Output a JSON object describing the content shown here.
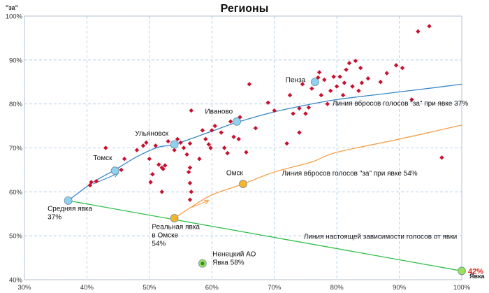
{
  "chart_data": {
    "type": "scatter",
    "title": "Регионы",
    "xlabel": "Явка",
    "ylabel": "\"за\"",
    "xlim": [
      0.3,
      1.0
    ],
    "ylim": [
      0.4,
      1.0
    ],
    "x_ticks": [
      "30%",
      "40%",
      "50%",
      "60%",
      "70%",
      "80%",
      "90%",
      "100%"
    ],
    "y_ticks": [
      "40%",
      "50%",
      "60%",
      "70%",
      "80%",
      "90%",
      "100%"
    ],
    "grid": true,
    "colors": {
      "regions": "#c8102e",
      "line_37": "#3a87c8",
      "line_54": "#f5a04a",
      "line_real": "#2fbf4a",
      "marker_blue": "#8fd1ee",
      "marker_orange": "#f6b52b",
      "marker_green": "#9be05a",
      "accent": "#e0201b",
      "grid": "#a9c4e4"
    },
    "regions": [
      [
        0.405,
        0.615
      ],
      [
        0.407,
        0.622
      ],
      [
        0.415,
        0.624
      ],
      [
        0.43,
        0.7
      ],
      [
        0.455,
        0.65
      ],
      [
        0.46,
        0.675
      ],
      [
        0.48,
        0.695
      ],
      [
        0.49,
        0.705
      ],
      [
        0.495,
        0.712
      ],
      [
        0.5,
        0.675
      ],
      [
        0.502,
        0.622
      ],
      [
        0.505,
        0.64
      ],
      [
        0.51,
        0.705
      ],
      [
        0.515,
        0.662
      ],
      [
        0.52,
        0.655
      ],
      [
        0.52,
        0.6
      ],
      [
        0.522,
        0.652
      ],
      [
        0.525,
        0.66
      ],
      [
        0.53,
        0.715
      ],
      [
        0.54,
        0.695
      ],
      [
        0.545,
        0.72
      ],
      [
        0.55,
        0.712
      ],
      [
        0.555,
        0.7
      ],
      [
        0.56,
        0.685
      ],
      [
        0.563,
        0.645
      ],
      [
        0.565,
        0.655
      ],
      [
        0.565,
        0.62
      ],
      [
        0.567,
        0.6
      ],
      [
        0.565,
        0.582
      ],
      [
        0.565,
        0.71
      ],
      [
        0.567,
        0.785
      ],
      [
        0.58,
        0.675
      ],
      [
        0.585,
        0.74
      ],
      [
        0.59,
        0.72
      ],
      [
        0.595,
        0.708
      ],
      [
        0.598,
        0.7
      ],
      [
        0.6,
        0.74
      ],
      [
        0.605,
        0.75
      ],
      [
        0.615,
        0.735
      ],
      [
        0.62,
        0.7
      ],
      [
        0.625,
        0.688
      ],
      [
        0.63,
        0.76
      ],
      [
        0.635,
        0.725
      ],
      [
        0.64,
        0.76
      ],
      [
        0.643,
        0.72
      ],
      [
        0.645,
        0.77
      ],
      [
        0.655,
        0.69
      ],
      [
        0.66,
        0.845
      ],
      [
        0.67,
        0.745
      ],
      [
        0.69,
        0.803
      ],
      [
        0.7,
        0.785
      ],
      [
        0.72,
        0.71
      ],
      [
        0.725,
        0.82
      ],
      [
        0.73,
        0.778
      ],
      [
        0.74,
        0.735
      ],
      [
        0.74,
        0.79
      ],
      [
        0.745,
        0.845
      ],
      [
        0.75,
        0.778
      ],
      [
        0.755,
        0.792
      ],
      [
        0.76,
        0.835
      ],
      [
        0.765,
        0.848
      ],
      [
        0.77,
        0.86
      ],
      [
        0.772,
        0.872
      ],
      [
        0.775,
        0.82
      ],
      [
        0.78,
        0.855
      ],
      [
        0.785,
        0.8
      ],
      [
        0.79,
        0.83
      ],
      [
        0.795,
        0.862
      ],
      [
        0.8,
        0.84
      ],
      [
        0.805,
        0.862
      ],
      [
        0.81,
        0.82
      ],
      [
        0.812,
        0.848
      ],
      [
        0.815,
        0.878
      ],
      [
        0.82,
        0.893
      ],
      [
        0.825,
        0.84
      ],
      [
        0.83,
        0.898
      ],
      [
        0.835,
        0.83
      ],
      [
        0.838,
        0.882
      ],
      [
        0.84,
        0.848
      ],
      [
        0.85,
        0.858
      ],
      [
        0.87,
        0.85
      ],
      [
        0.88,
        0.87
      ],
      [
        0.895,
        0.888
      ],
      [
        0.905,
        0.882
      ],
      [
        0.92,
        0.81
      ],
      [
        0.93,
        0.965
      ],
      [
        0.948,
        0.977
      ],
      [
        0.968,
        0.678
      ]
    ],
    "curve_37": [
      [
        0.37,
        0.58
      ],
      [
        0.41,
        0.622
      ],
      [
        0.445,
        0.65
      ],
      [
        0.48,
        0.68
      ],
      [
        0.515,
        0.702
      ],
      [
        0.54,
        0.708
      ],
      [
        0.6,
        0.738
      ],
      [
        0.64,
        0.758
      ],
      [
        0.7,
        0.782
      ],
      [
        0.76,
        0.8
      ],
      [
        0.8,
        0.81
      ],
      [
        0.88,
        0.824
      ],
      [
        0.95,
        0.836
      ],
      [
        1.0,
        0.845
      ]
    ],
    "curve_54": [
      [
        0.54,
        0.54
      ],
      [
        0.57,
        0.568
      ],
      [
        0.6,
        0.593
      ],
      [
        0.65,
        0.618
      ],
      [
        0.7,
        0.645
      ],
      [
        0.76,
        0.668
      ],
      [
        0.8,
        0.69
      ],
      [
        0.9,
        0.72
      ],
      [
        1.0,
        0.752
      ]
    ],
    "line_real": [
      [
        0.37,
        0.58
      ],
      [
        1.0,
        0.42
      ]
    ],
    "markers": [
      {
        "id": "avg",
        "x": 0.37,
        "y": 0.58,
        "color": "marker_blue"
      },
      {
        "id": "tomsk",
        "x": 0.445,
        "y": 0.648,
        "color": "marker_blue"
      },
      {
        "id": "ulyanovsk",
        "x": 0.54,
        "y": 0.708,
        "color": "marker_blue"
      },
      {
        "id": "ivanovo",
        "x": 0.64,
        "y": 0.76,
        "color": "marker_blue"
      },
      {
        "id": "penza",
        "x": 0.765,
        "y": 0.85,
        "color": "marker_blue"
      },
      {
        "id": "omsk",
        "x": 0.65,
        "y": 0.618,
        "color": "marker_orange"
      },
      {
        "id": "omsk-real",
        "x": 0.54,
        "y": 0.54,
        "color": "marker_orange"
      },
      {
        "id": "nenets",
        "x": 0.585,
        "y": 0.437,
        "color": "marker_green"
      },
      {
        "id": "end",
        "x": 1.0,
        "y": 0.42,
        "color": "marker_green"
      }
    ],
    "arrows": [
      {
        "color": "line_37",
        "from": [
          0.41,
          0.618
        ],
        "to": [
          0.45,
          0.642
        ]
      },
      {
        "color": "line_54",
        "from": [
          0.568,
          0.565
        ],
        "to": [
          0.595,
          0.58
        ]
      }
    ],
    "annotations": [
      {
        "id": "tomsk",
        "lines": [
          "Томск"
        ],
        "x": 0.41,
        "y": 0.672
      },
      {
        "id": "ulyanovsk",
        "lines": [
          "Ульяновск"
        ],
        "x": 0.477,
        "y": 0.728
      },
      {
        "id": "ivanovo",
        "lines": [
          "Иваново"
        ],
        "x": 0.589,
        "y": 0.778
      },
      {
        "id": "penza",
        "lines": [
          "Пенза"
        ],
        "x": 0.718,
        "y": 0.85
      },
      {
        "id": "omsk",
        "lines": [
          "Омск"
        ],
        "x": 0.623,
        "y": 0.638
      },
      {
        "id": "avg",
        "lines": [
          "Средняя явка",
          "37%"
        ],
        "x": 0.337,
        "y": 0.557
      },
      {
        "id": "omsk-real",
        "lines": [
          "Реальная явка",
          "в Омске",
          "54%"
        ],
        "x": 0.504,
        "y": 0.515
      },
      {
        "id": "nenets",
        "lines": [
          "Ненецкий АО",
          "Явка 58%"
        ],
        "x": 0.601,
        "y": 0.453
      },
      {
        "id": "line37",
        "lines": [
          "Линия вбросов голосов \"за\" при явке 37%"
        ],
        "x": 0.793,
        "y": 0.796
      },
      {
        "id": "line54",
        "lines": [
          "Линия вбросов голосов \"за\" при явке 54%"
        ],
        "x": 0.712,
        "y": 0.637
      },
      {
        "id": "line_real",
        "lines": [
          "Линия настоящей зависимости голосов от явки"
        ],
        "x": 0.747,
        "y": 0.493
      }
    ],
    "accent_label": "42%"
  }
}
